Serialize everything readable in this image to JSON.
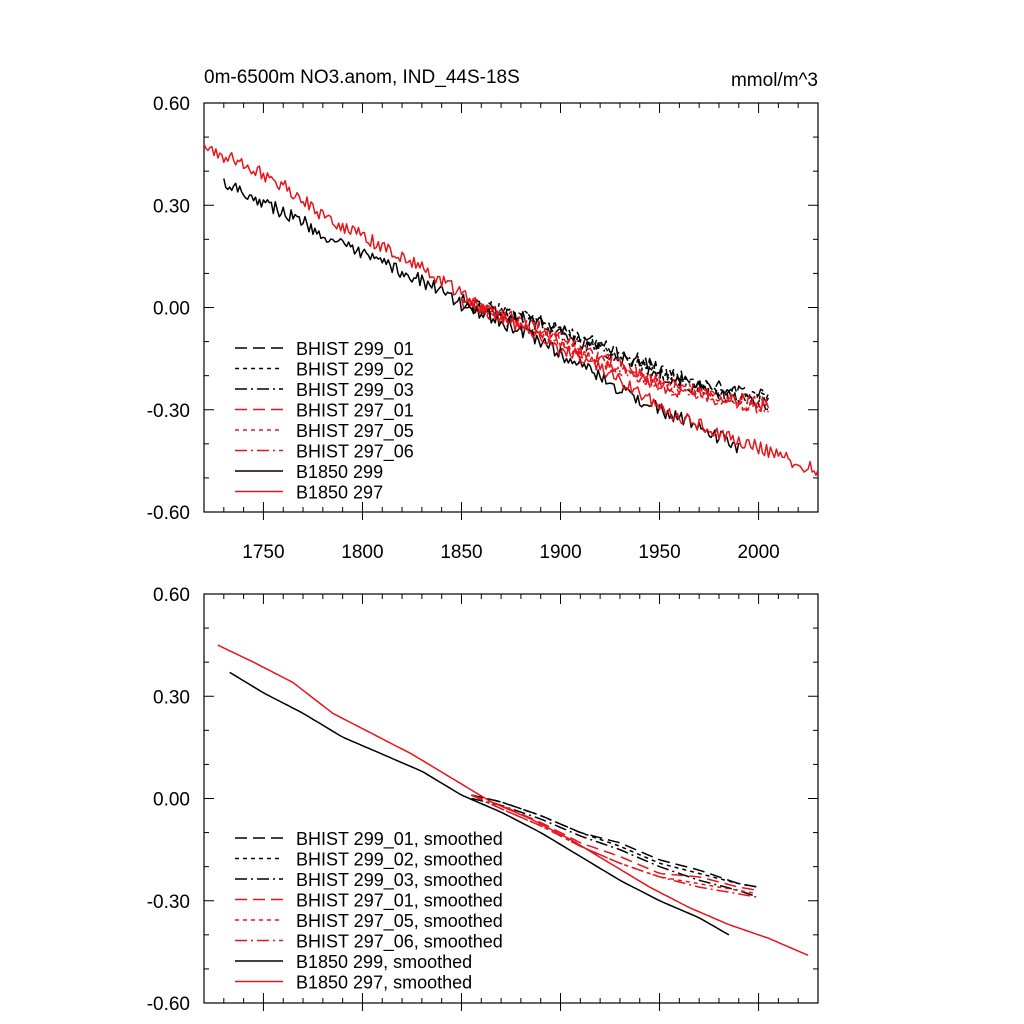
{
  "title_left": "0m-6500m NO3.anom, IND_44S-18S",
  "title_right": "mmol/m^3",
  "chart_data": [
    {
      "type": "line",
      "xlim": [
        1720,
        2030
      ],
      "ylim": [
        -0.6,
        0.6
      ],
      "xticks": [
        "1750",
        "1800",
        "1850",
        "1900",
        "1950",
        "2000"
      ],
      "yticks": [
        "-0.60",
        "-0.30",
        "0.00",
        "0.30",
        "0.60"
      ],
      "legend_position": "bottom-left",
      "series": [
        {
          "name": "BHIST 299_01",
          "color": "#000000",
          "dash": "dash",
          "x": [
            1850,
            1870,
            1890,
            1910,
            1930,
            1950,
            1970,
            1990,
            2005
          ],
          "y": [
            0.02,
            -0.01,
            -0.04,
            -0.09,
            -0.13,
            -0.18,
            -0.22,
            -0.25,
            -0.26
          ],
          "noise": 0.02
        },
        {
          "name": "BHIST 299_02",
          "color": "#000000",
          "dash": "dot",
          "x": [
            1850,
            1870,
            1890,
            1910,
            1930,
            1950,
            1970,
            1990,
            2005
          ],
          "y": [
            0.02,
            -0.01,
            -0.04,
            -0.09,
            -0.14,
            -0.19,
            -0.23,
            -0.26,
            -0.27
          ],
          "noise": 0.02
        },
        {
          "name": "BHIST 299_03",
          "color": "#000000",
          "dash": "dashdot",
          "x": [
            1850,
            1870,
            1890,
            1910,
            1930,
            1950,
            1970,
            1990,
            2005
          ],
          "y": [
            0.01,
            -0.02,
            -0.05,
            -0.1,
            -0.15,
            -0.2,
            -0.24,
            -0.27,
            -0.29
          ],
          "noise": 0.02
        },
        {
          "name": "BHIST 297_01",
          "color": "#e8141b",
          "dash": "dash",
          "x": [
            1850,
            1870,
            1890,
            1910,
            1930,
            1950,
            1970,
            1990,
            2005
          ],
          "y": [
            0.02,
            -0.02,
            -0.06,
            -0.12,
            -0.17,
            -0.22,
            -0.25,
            -0.27,
            -0.28
          ],
          "noise": 0.02
        },
        {
          "name": "BHIST 297_05",
          "color": "#e8141b",
          "dash": "dot",
          "x": [
            1850,
            1870,
            1890,
            1910,
            1930,
            1950,
            1970,
            1990,
            2005
          ],
          "y": [
            0.02,
            -0.02,
            -0.07,
            -0.13,
            -0.18,
            -0.22,
            -0.25,
            -0.28,
            -0.29
          ],
          "noise": 0.02
        },
        {
          "name": "BHIST 297_06",
          "color": "#e8141b",
          "dash": "dashdot",
          "x": [
            1850,
            1870,
            1890,
            1910,
            1930,
            1950,
            1970,
            1990,
            2005
          ],
          "y": [
            0.01,
            -0.03,
            -0.07,
            -0.13,
            -0.18,
            -0.23,
            -0.26,
            -0.28,
            -0.3
          ],
          "noise": 0.02
        },
        {
          "name": "B1850 299",
          "color": "#000000",
          "dash": "solid",
          "x": [
            1730,
            1750,
            1770,
            1790,
            1810,
            1830,
            1850,
            1870,
            1890,
            1910,
            1930,
            1950,
            1970,
            1990
          ],
          "y": [
            0.37,
            0.31,
            0.25,
            0.18,
            0.13,
            0.08,
            0.01,
            -0.04,
            -0.1,
            -0.17,
            -0.24,
            -0.3,
            -0.35,
            -0.41
          ],
          "noise": 0.02
        },
        {
          "name": "B1850 297",
          "color": "#e8141b",
          "dash": "solid",
          "x": [
            1720,
            1740,
            1760,
            1780,
            1800,
            1820,
            1840,
            1860,
            1880,
            1900,
            1920,
            1940,
            1960,
            1980,
            2000,
            2030
          ],
          "y": [
            0.47,
            0.42,
            0.36,
            0.27,
            0.21,
            0.15,
            0.08,
            0.0,
            -0.06,
            -0.12,
            -0.18,
            -0.25,
            -0.32,
            -0.37,
            -0.41,
            -0.48
          ],
          "noise": 0.02
        }
      ]
    },
    {
      "type": "line",
      "xlim": [
        1720,
        2030
      ],
      "ylim": [
        -0.6,
        0.6
      ],
      "xticks": [],
      "yticks": [
        "-0.60",
        "-0.30",
        "0.00",
        "0.30",
        "0.60"
      ],
      "legend_position": "bottom-left",
      "series": [
        {
          "name": "BHIST 299_01, smoothed",
          "color": "#000000",
          "dash": "dash",
          "x": [
            1855,
            1870,
            1890,
            1910,
            1930,
            1950,
            1970,
            1990,
            2000
          ],
          "y": [
            0.01,
            -0.01,
            -0.05,
            -0.1,
            -0.13,
            -0.18,
            -0.21,
            -0.25,
            -0.26
          ],
          "noise": 0
        },
        {
          "name": "BHIST 299_02, smoothed",
          "color": "#000000",
          "dash": "dot",
          "x": [
            1855,
            1870,
            1890,
            1910,
            1930,
            1950,
            1970,
            1990,
            2000
          ],
          "y": [
            0.01,
            -0.01,
            -0.05,
            -0.1,
            -0.14,
            -0.19,
            -0.22,
            -0.25,
            -0.26
          ],
          "noise": 0
        },
        {
          "name": "BHIST 299_03, smoothed",
          "color": "#000000",
          "dash": "dashdot",
          "x": [
            1855,
            1870,
            1890,
            1910,
            1930,
            1950,
            1970,
            1990,
            2000
          ],
          "y": [
            0.0,
            -0.02,
            -0.06,
            -0.11,
            -0.15,
            -0.2,
            -0.24,
            -0.27,
            -0.29
          ],
          "noise": 0
        },
        {
          "name": "BHIST 297_01, smoothed",
          "color": "#e8141b",
          "dash": "dash",
          "x": [
            1855,
            1870,
            1890,
            1910,
            1930,
            1950,
            1970,
            1990,
            2000
          ],
          "y": [
            0.01,
            -0.02,
            -0.07,
            -0.13,
            -0.17,
            -0.22,
            -0.23,
            -0.26,
            -0.27
          ],
          "noise": 0
        },
        {
          "name": "BHIST 297_05, smoothed",
          "color": "#e8141b",
          "dash": "dot",
          "x": [
            1855,
            1870,
            1890,
            1910,
            1930,
            1950,
            1970,
            1990,
            2000
          ],
          "y": [
            0.01,
            -0.03,
            -0.08,
            -0.14,
            -0.19,
            -0.23,
            -0.25,
            -0.27,
            -0.28
          ],
          "noise": 0
        },
        {
          "name": "BHIST 297_06, smoothed",
          "color": "#e8141b",
          "dash": "dashdot",
          "x": [
            1855,
            1870,
            1890,
            1910,
            1930,
            1950,
            1970,
            1990,
            2000
          ],
          "y": [
            0.01,
            -0.03,
            -0.08,
            -0.14,
            -0.19,
            -0.23,
            -0.26,
            -0.28,
            -0.29
          ],
          "noise": 0
        },
        {
          "name": "B1850 299, smoothed",
          "color": "#000000",
          "dash": "solid",
          "x": [
            1733,
            1750,
            1770,
            1790,
            1810,
            1830,
            1850,
            1870,
            1890,
            1910,
            1930,
            1950,
            1970,
            1985
          ],
          "y": [
            0.37,
            0.31,
            0.25,
            0.18,
            0.13,
            0.08,
            0.01,
            -0.04,
            -0.1,
            -0.17,
            -0.24,
            -0.3,
            -0.35,
            -0.4
          ],
          "noise": 0
        },
        {
          "name": "B1850 297, smoothed",
          "color": "#e8141b",
          "dash": "solid",
          "x": [
            1727,
            1745,
            1765,
            1785,
            1805,
            1825,
            1845,
            1865,
            1885,
            1905,
            1925,
            1945,
            1965,
            1985,
            2005,
            2025
          ],
          "y": [
            0.45,
            0.4,
            0.34,
            0.25,
            0.19,
            0.13,
            0.06,
            -0.01,
            -0.06,
            -0.12,
            -0.19,
            -0.26,
            -0.32,
            -0.37,
            -0.41,
            -0.46
          ],
          "noise": 0
        }
      ]
    }
  ]
}
